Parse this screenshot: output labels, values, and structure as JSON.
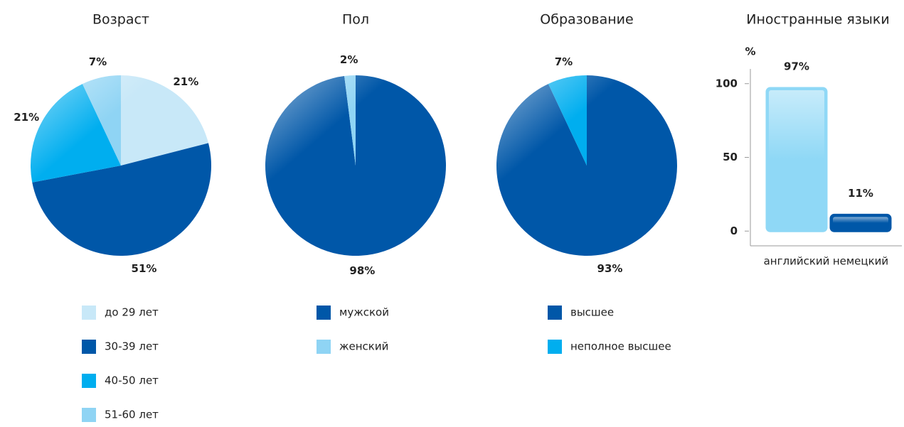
{
  "chart_data": [
    {
      "type": "pie",
      "title": "Возраст",
      "categories": [
        "до 29 лет",
        "30-39 лет",
        "40-50 лет",
        "51-60 лет"
      ],
      "values": [
        21,
        51,
        21,
        7
      ],
      "value_labels": [
        "21%",
        "51%",
        "21%",
        "7%"
      ],
      "colors": [
        "#c8e8f8",
        "#0057a8",
        "#00aeef",
        "#8fd4f4"
      ]
    },
    {
      "type": "pie",
      "title": "Пол",
      "categories": [
        "мужской",
        "женский"
      ],
      "values": [
        98,
        2
      ],
      "value_labels": [
        "98%",
        "2%"
      ],
      "colors": [
        "#0057a8",
        "#8fd4f4"
      ]
    },
    {
      "type": "pie",
      "title": "Образование",
      "categories": [
        "высшее",
        "неполное высшее"
      ],
      "values": [
        93,
        7
      ],
      "value_labels": [
        "93%",
        "7%"
      ],
      "colors": [
        "#0057a8",
        "#00aeef"
      ]
    },
    {
      "type": "bar",
      "title": "Иностранные языки",
      "ylabel": "%",
      "categories": [
        "английский",
        "немецкий"
      ],
      "values": [
        97,
        11
      ],
      "value_labels": [
        "97%",
        "11%"
      ],
      "colors": [
        "#8fd8f6",
        "#0057a8"
      ],
      "ylim": [
        -10,
        110
      ],
      "yticks": [
        0,
        50,
        100
      ]
    }
  ]
}
